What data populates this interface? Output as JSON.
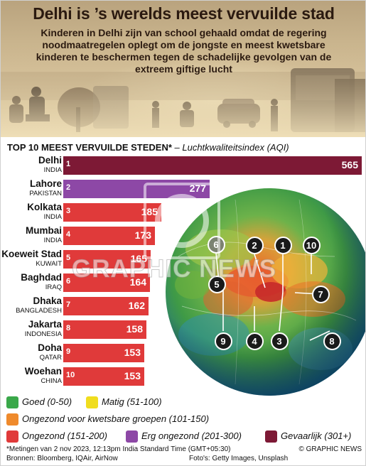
{
  "header": {
    "title": "Delhi is ’s werelds meest vervuilde stad",
    "subtitle": "Kinderen in Delhi zijn van school gehaald omdat de regering noodmaatregelen oplegt om de jongste en meest kwetsbare kinderen te beschermen tegen de schadelijke gevolgen van de extreem giftige lucht"
  },
  "section": {
    "heading": "TOP 10 MEEST VERVUILDE STEDEN*",
    "subheading": " – Luchtkwaliteitsindex (AQI)"
  },
  "chart_data": {
    "type": "bar",
    "title": "TOP 10 MEEST VERVUILDE STEDEN*",
    "subtitle": "Luchtkwaliteitsindex (AQI)",
    "categories": [
      "Delhi",
      "Lahore",
      "Kolkata",
      "Mumbai",
      "Koeweit Stad",
      "Baghdad",
      "Dhaka",
      "Jakarta",
      "Doha",
      "Woehan"
    ],
    "countries": [
      "INDIA",
      "PAKISTAN",
      "INDIA",
      "INDIA",
      "KUWAIT",
      "IRAQ",
      "BANGLADESH",
      "INDONESIA",
      "QATAR",
      "CHINA"
    ],
    "ranks": [
      "1",
      "2",
      "3",
      "4",
      "5",
      "6",
      "7",
      "8",
      "9",
      "10"
    ],
    "values": [
      565,
      277,
      185,
      173,
      165,
      164,
      162,
      158,
      153,
      153
    ],
    "categories_color": [
      "#7d1935",
      "#8d48a6",
      "#e03a3a",
      "#e03a3a",
      "#e03a3a",
      "#e03a3a",
      "#e03a3a",
      "#e03a3a",
      "#e03a3a",
      "#e03a3a"
    ],
    "orientation": "horizontal",
    "xlim": [
      0,
      565
    ]
  },
  "map": {
    "markers": [
      "1",
      "2",
      "3",
      "4",
      "5",
      "6",
      "7",
      "8",
      "9",
      "10"
    ]
  },
  "watermark": "GRAPHIC NEWS",
  "legend": {
    "items": [
      {
        "label": "Goed (0-50)",
        "color": "#3aa84a"
      },
      {
        "label": "Matig (51-100)",
        "color": "#f0dd1e"
      },
      {
        "label": "Ongezond voor kwetsbare groepen (101-150)",
        "color": "#ef8a2c"
      },
      {
        "label": "Ongezond (151-200)",
        "color": "#e03a3a"
      },
      {
        "label": "Erg ongezond (201-300)",
        "color": "#8d48a6"
      },
      {
        "label": "Gevaarlijk (301+)",
        "color": "#7d1935"
      }
    ]
  },
  "footer": {
    "note": "*Metingen van 2 nov 2023, 12:13pm India Standard Time (GMT+05:30)",
    "sources": "Bronnen: Bloomberg, IQAir, AirNow",
    "photos": "Foto's: Getty Images, Unsplash",
    "credit": "© GRAPHIC NEWS"
  }
}
